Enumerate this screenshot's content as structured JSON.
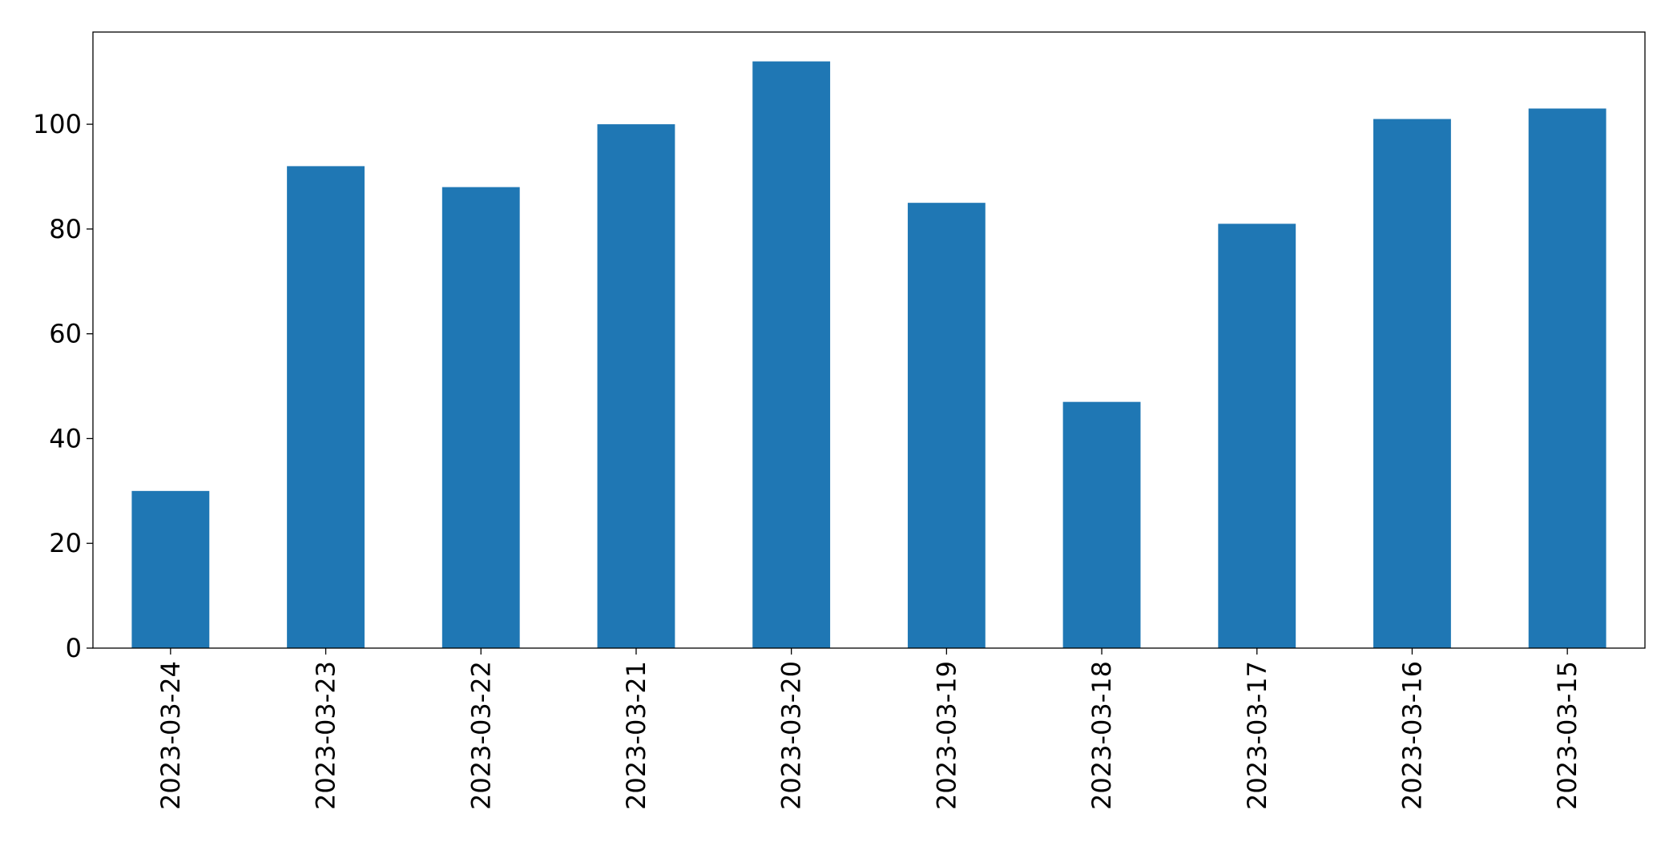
{
  "chart_data": {
    "type": "bar",
    "categories": [
      "2023-03-24",
      "2023-03-23",
      "2023-03-22",
      "2023-03-21",
      "2023-03-20",
      "2023-03-19",
      "2023-03-18",
      "2023-03-17",
      "2023-03-16",
      "2023-03-15"
    ],
    "values": [
      30,
      92,
      88,
      100,
      112,
      85,
      47,
      81,
      101,
      103
    ],
    "color": "#1f77b4",
    "ylim": [
      0,
      117.6
    ],
    "yticks": [
      0,
      20,
      40,
      60,
      80,
      100
    ],
    "grid": false
  }
}
